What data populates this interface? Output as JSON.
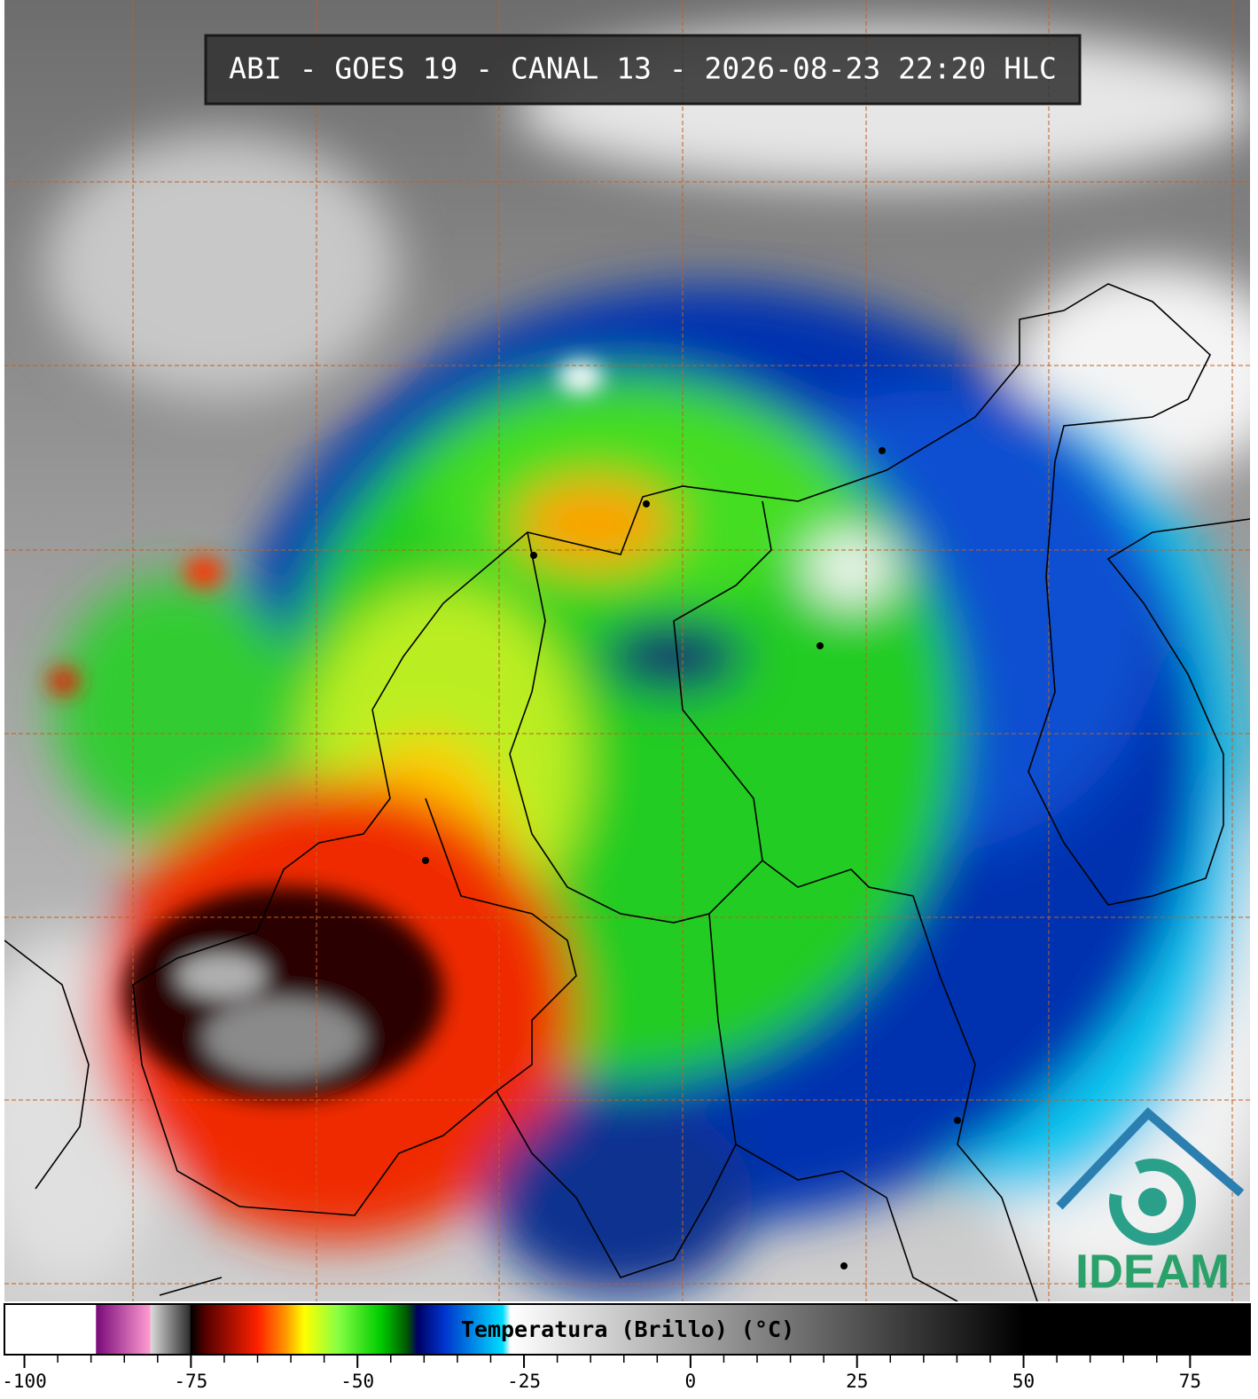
{
  "title": "ABI - GOES 19 - CANAL 13 - 2026-08-23 22:20 HLC",
  "logo": "IDEAM",
  "colorbar": {
    "label": "Temperatura (Brillo) (°C)",
    "range": [
      -103,
      84
    ],
    "ticks": [
      -100,
      -75,
      -50,
      -25,
      0,
      25,
      50,
      75
    ],
    "stops": [
      [
        -103,
        "#ffffff"
      ],
      [
        -89.3,
        "#ffffff"
      ],
      [
        -89.2,
        "#7a0a7a"
      ],
      [
        -81.2,
        "#ff9ad0"
      ],
      [
        -81,
        "#d8d8d8"
      ],
      [
        -75.2,
        "#303030"
      ],
      [
        -75,
        "#000000"
      ],
      [
        -73,
        "#500000"
      ],
      [
        -65,
        "#ff2000"
      ],
      [
        -61,
        "#ff9000"
      ],
      [
        -58,
        "#ffff00"
      ],
      [
        -53,
        "#88ff44"
      ],
      [
        -46.5,
        "#00cc00"
      ],
      [
        -42.5,
        "#005500"
      ],
      [
        -41,
        "#000066"
      ],
      [
        -37,
        "#0033cc"
      ],
      [
        -28.2,
        "#00ddff"
      ],
      [
        -27,
        "#ffffff"
      ],
      [
        50,
        "#000000"
      ],
      [
        84,
        "#000000"
      ]
    ]
  }
}
